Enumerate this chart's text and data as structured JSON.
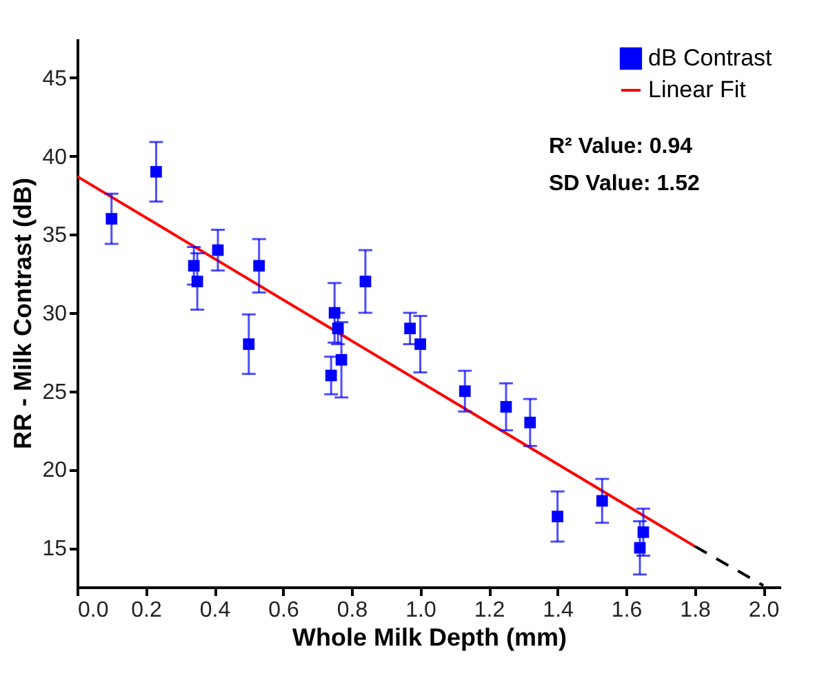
{
  "chart_data": {
    "type": "scatter",
    "xlabel": "Whole Milk Depth (mm)",
    "ylabel": "RR - Milk Contrast (dB)",
    "xlim": [
      0,
      2.05
    ],
    "ylim": [
      12.5,
      47.5
    ],
    "xticks": [
      {
        "value": 0,
        "label": "0.0"
      },
      {
        "value": 0.2,
        "label": "0.2"
      },
      {
        "value": 0.4,
        "label": "0.4"
      },
      {
        "value": 0.6,
        "label": "0.6"
      },
      {
        "value": 0.8,
        "label": "0.8"
      },
      {
        "value": 1,
        "label": "1.0"
      },
      {
        "value": 1.2,
        "label": "1.2"
      },
      {
        "value": 1.4,
        "label": "1.4"
      },
      {
        "value": 1.6,
        "label": "1.6"
      },
      {
        "value": 1.8,
        "label": "1.8"
      },
      {
        "value": 2,
        "label": "2.0"
      }
    ],
    "yticks": [
      15,
      20,
      25,
      30,
      35,
      40,
      45
    ],
    "grid": false,
    "legend": "top right",
    "annotations": [
      "R² Value: 0.94",
      "SD Value: 1.52"
    ],
    "series": [
      {
        "name": "dB Contrast",
        "marker": "square",
        "color": "#0000ff",
        "x": [
          0.1,
          0.23,
          0.34,
          0.35,
          0.41,
          0.5,
          0.53,
          0.74,
          0.75,
          0.76,
          0.77,
          0.84,
          0.97,
          1.0,
          1.13,
          1.25,
          1.32,
          1.4,
          1.53,
          1.64,
          1.65
        ],
        "values": [
          36,
          39,
          33,
          32,
          34,
          28,
          33,
          26,
          30,
          29,
          27,
          32,
          29,
          28,
          25,
          24,
          23,
          17,
          18,
          15,
          16
        ],
        "errors": [
          1.6,
          1.9,
          1.2,
          1.8,
          1.3,
          1.9,
          1.7,
          1.2,
          1.9,
          1,
          2.4,
          2,
          1,
          1.8,
          1.3,
          1.5,
          1.5,
          1.6,
          1.4,
          1.7,
          1.5
        ]
      },
      {
        "name": "Linear Fit",
        "type": "line",
        "color": "#ff0000",
        "line_style": "solid",
        "x": [
          0,
          1.8
        ],
        "values": [
          38.7,
          15.1
        ]
      },
      {
        "type": "line",
        "color": "#000000",
        "line_style": "dashed",
        "x": [
          1.8,
          2.0
        ],
        "values": [
          15.1,
          12.6
        ]
      }
    ]
  }
}
